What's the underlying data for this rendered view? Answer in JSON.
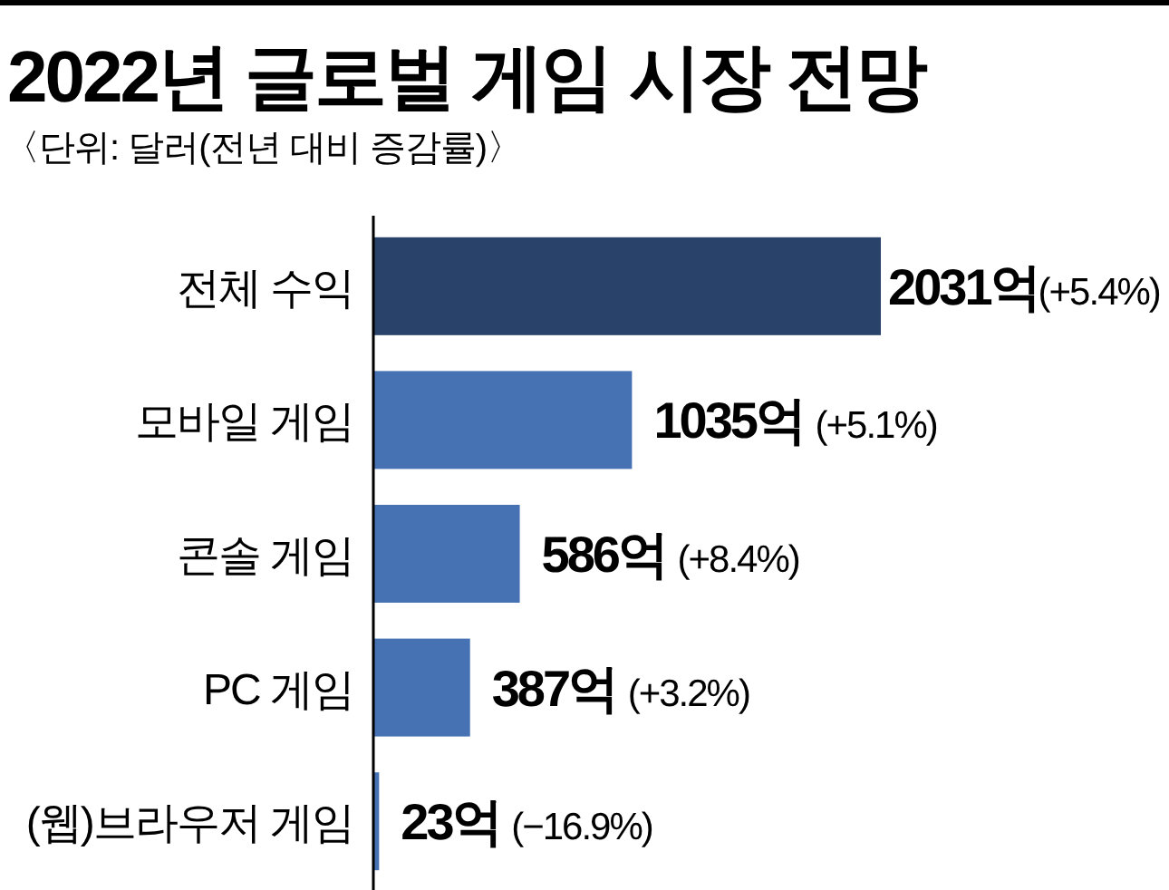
{
  "chart_data": {
    "type": "bar",
    "orientation": "horizontal",
    "title": "2022년 글로벌 게임 시장 전망",
    "subtitle": "〈단위: 달러(전년 대비 증감률)〉",
    "categories": [
      "전체 수익",
      "모바일 게임",
      "콘솔 게임",
      "PC 게임",
      "(웹)브라우저 게임"
    ],
    "values": [
      2031,
      1035,
      586,
      387,
      23
    ],
    "colors": [
      "#29426a",
      "#4672b4",
      "#4672b4",
      "#4672b4",
      "#4672b4"
    ],
    "value_labels": [
      "2031억(+5.4%)",
      "1035억 (+5.1%)",
      "586억 (+8.4%)",
      "387억 (+3.2%)",
      "23억 (−16.9%)"
    ]
  }
}
